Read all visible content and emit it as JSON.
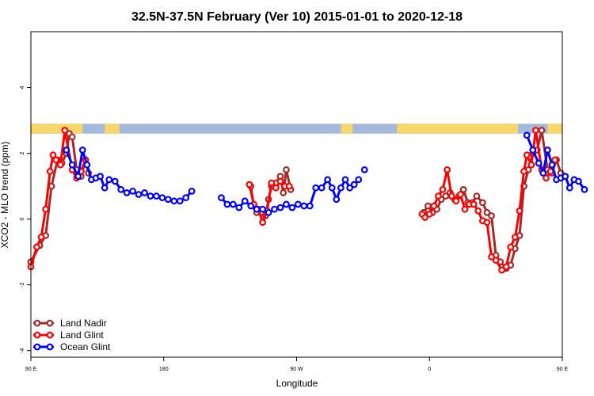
{
  "chart_data": {
    "type": "line",
    "title": "32.5N-37.5N February (Ver 10)   2015-01-01 to 2020-12-18",
    "xlabel": "Longitude",
    "ylabel": "XCO2 - MLO trend (ppm)",
    "xlim": [
      90,
      450
    ],
    "ylim": [
      -4.2,
      5.7
    ],
    "x_ticks": [
      {
        "value": 90,
        "label": "90 E"
      },
      {
        "value": 180,
        "label": "180"
      },
      {
        "value": 270,
        "label": "90 W"
      },
      {
        "value": 360,
        "label": "0"
      },
      {
        "value": 450,
        "label": "90 E"
      },
      {
        "value": 540,
        "label": "180"
      }
    ],
    "y_ticks": [
      {
        "value": -4,
        "label": "-4"
      },
      {
        "value": -2,
        "label": "-2"
      },
      {
        "value": 0,
        "label": "0"
      },
      {
        "value": 2,
        "label": "2"
      },
      {
        "value": 4,
        "label": "4"
      }
    ],
    "grid": false,
    "legend_position": "bottom-left",
    "land_ocean_strip": {
      "y_range": [
        2.6,
        2.9
      ],
      "ocean_color": "#a5b9dc",
      "land_color": "#f7d76b",
      "land_segments": [
        [
          90,
          125
        ],
        [
          140,
          150
        ],
        [
          300,
          308
        ],
        [
          338,
          420
        ],
        [
          440,
          450
        ],
        [
          450,
          485
        ],
        [
          500,
          510
        ]
      ]
    },
    "series": [
      {
        "name": "Land Nadir",
        "color": "#a52a2a",
        "segments": [
          [
            [
              90,
              -1.3
            ],
            [
              96,
              -0.8
            ],
            [
              100,
              -0.5
            ],
            [
              104,
              1.0
            ],
            [
              108,
              1.8
            ],
            [
              111,
              1.7
            ],
            [
              114,
              2.0
            ],
            [
              116,
              2.6
            ],
            [
              118,
              2.5
            ],
            [
              121,
              1.5
            ],
            [
              124,
              1.3
            ],
            [
              127,
              1.8
            ],
            [
              129,
              1.4
            ]
          ],
          [
            [
              239,
              1.0
            ],
            [
              241,
              0.4
            ],
            [
              243,
              0.2
            ],
            [
              246,
              0.2
            ],
            [
              249,
              0.1
            ],
            [
              251,
              0.6
            ],
            [
              253,
              1.0
            ],
            [
              256,
              1.1
            ],
            [
              259,
              1.3
            ],
            [
              261,
              0.8
            ],
            [
              263,
              1.5
            ],
            [
              266,
              0.9
            ]
          ],
          [
            [
              356,
              0.2
            ],
            [
              359,
              0.4
            ],
            [
              362,
              0.2
            ],
            [
              365,
              0.3
            ],
            [
              368,
              0.6
            ],
            [
              371,
              0.7
            ],
            [
              374,
              0.8
            ],
            [
              377,
              0.6
            ],
            [
              380,
              0.7
            ],
            [
              383,
              0.9
            ],
            [
              386,
              0.5
            ],
            [
              389,
              0.5
            ],
            [
              392,
              0.7
            ],
            [
              396,
              0.5
            ],
            [
              399,
              0.2
            ],
            [
              402,
              0.1
            ],
            [
              405,
              -1.1
            ],
            [
              408,
              -1.3
            ],
            [
              412,
              -1.5
            ],
            [
              415,
              -1.4
            ],
            [
              418,
              -0.9
            ],
            [
              421,
              -0.5
            ],
            [
              424,
              1.0
            ],
            [
              427,
              1.5
            ],
            [
              430,
              2.0
            ],
            [
              433,
              2.1
            ],
            [
              436,
              2.7
            ],
            [
              440,
              1.5
            ],
            [
              443,
              1.4
            ],
            [
              446,
              1.8
            ],
            [
              449,
              1.4
            ]
          ]
        ]
      },
      {
        "name": "Land Glint",
        "color": "#ff0000",
        "segments": [
          [
            [
              90,
              -1.45
            ],
            [
              94,
              -0.85
            ],
            [
              97,
              -0.55
            ],
            [
              100,
              0.3
            ],
            [
              103,
              1.45
            ],
            [
              105,
              1.95
            ],
            [
              107,
              1.8
            ],
            [
              110,
              1.65
            ],
            [
              113,
              2.7
            ],
            [
              118,
              1.5
            ],
            [
              121,
              1.25
            ],
            [
              124,
              1.45
            ],
            [
              127,
              1.8
            ]
          ],
          [
            [
              238,
              1.05
            ],
            [
              241,
              0.45
            ],
            [
              244,
              0.3
            ],
            [
              247,
              -0.1
            ],
            [
              250,
              0.25
            ],
            [
              253,
              1.1
            ],
            [
              256,
              0.95
            ],
            [
              259,
              1.15
            ],
            [
              262,
              1.0
            ],
            [
              265,
              1.0
            ]
          ],
          [
            [
              355,
              0.15
            ],
            [
              357,
              0.05
            ],
            [
              360,
              0.15
            ],
            [
              363,
              0.4
            ],
            [
              366,
              0.7
            ],
            [
              369,
              0.9
            ],
            [
              372,
              1.5
            ],
            [
              375,
              0.7
            ],
            [
              378,
              0.55
            ],
            [
              381,
              0.75
            ],
            [
              384,
              0.3
            ],
            [
              387,
              0.45
            ],
            [
              390,
              0.45
            ],
            [
              393,
              0.25
            ],
            [
              396,
              -0.05
            ],
            [
              399,
              -0.1
            ],
            [
              402,
              -1.15
            ],
            [
              405,
              -1.25
            ],
            [
              409,
              -1.55
            ],
            [
              412,
              -1.45
            ],
            [
              415,
              -0.85
            ],
            [
              418,
              -0.55
            ],
            [
              421,
              0.25
            ],
            [
              424,
              1.45
            ],
            [
              426,
              1.95
            ],
            [
              429,
              1.65
            ],
            [
              432,
              2.7
            ],
            [
              436,
              1.5
            ],
            [
              439,
              1.25
            ],
            [
              442,
              1.45
            ],
            [
              445,
              1.8
            ]
          ]
        ]
      },
      {
        "name": "Ocean Glint",
        "color": "#0000ff",
        "segments": [
          [
            [
              114,
              2.1
            ],
            [
              118,
              1.65
            ],
            [
              122,
              1.3
            ],
            [
              125,
              2.1
            ],
            [
              128,
              1.65
            ],
            [
              131,
              1.2
            ],
            [
              134,
              1.25
            ],
            [
              137,
              1.3
            ],
            [
              140,
              0.95
            ],
            [
              143,
              1.2
            ],
            [
              147,
              1.15
            ],
            [
              151,
              0.9
            ],
            [
              155,
              0.8
            ],
            [
              159,
              0.85
            ],
            [
              163,
              0.75
            ],
            [
              167,
              0.8
            ],
            [
              171,
              0.7
            ],
            [
              175,
              0.7
            ],
            [
              179,
              0.65
            ],
            [
              183,
              0.6
            ],
            [
              187,
              0.55
            ],
            [
              191,
              0.55
            ],
            [
              195,
              0.65
            ],
            [
              199,
              0.85
            ]
          ],
          [
            [
              219,
              0.65
            ],
            [
              223,
              0.45
            ],
            [
              227,
              0.45
            ],
            [
              231,
              0.35
            ],
            [
              235,
              0.55
            ],
            [
              239,
              0.4
            ],
            [
              243,
              0.3
            ],
            [
              247,
              0.3
            ],
            [
              251,
              0.2
            ],
            [
              255,
              0.3
            ],
            [
              259,
              0.35
            ],
            [
              263,
              0.45
            ],
            [
              267,
              0.35
            ],
            [
              271,
              0.45
            ],
            [
              275,
              0.4
            ],
            [
              279,
              0.4
            ],
            [
              283,
              0.95
            ],
            [
              287,
              0.95
            ],
            [
              291,
              1.2
            ],
            [
              294,
              0.95
            ],
            [
              297,
              0.6
            ],
            [
              300,
              0.95
            ],
            [
              303,
              1.2
            ],
            [
              306,
              0.95
            ],
            [
              309,
              1.05
            ],
            [
              312,
              1.2
            ]
          ],
          [
            [
              426,
              2.55
            ],
            [
              430,
              2.1
            ],
            [
              434,
              1.7
            ],
            [
              437,
              1.4
            ],
            [
              440,
              2.1
            ],
            [
              443,
              1.65
            ],
            [
              446,
              1.2
            ],
            [
              449,
              1.25
            ],
            [
              452,
              1.3
            ],
            [
              455,
              0.95
            ],
            [
              458,
              1.2
            ],
            [
              461,
              1.15
            ],
            [
              465,
              0.9
            ]
          ],
          [
            [
              316,
              1.5
            ]
          ]
        ]
      }
    ]
  }
}
